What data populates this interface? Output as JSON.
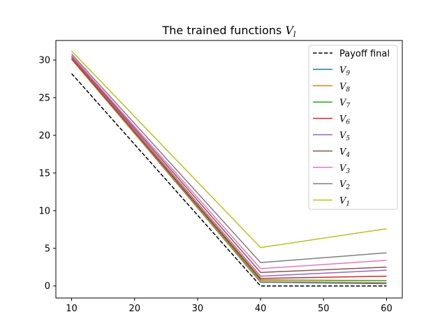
{
  "chart_data": {
    "type": "line",
    "title_prefix": "The trained functions",
    "title_symbol": "V",
    "title_subscript": "l",
    "x": [
      10,
      40,
      60
    ],
    "xlim": [
      7.5,
      62.5
    ],
    "ylim": [
      -1.6,
      32.6
    ],
    "xticks": [
      10,
      20,
      30,
      40,
      50,
      60
    ],
    "yticks": [
      0,
      5,
      10,
      15,
      20,
      25,
      30
    ],
    "legend_position": "upper-right",
    "series": [
      {
        "name": "Payoff final",
        "sym": "",
        "sub": "",
        "color": "#000000",
        "dash": true,
        "values": [
          28.2,
          0.0,
          0.0
        ]
      },
      {
        "name": "V_9",
        "sym": "V",
        "sub": "9",
        "color": "#1f77b4",
        "dash": false,
        "values": [
          30.1,
          0.5,
          0.3
        ]
      },
      {
        "name": "V_8",
        "sym": "V",
        "sub": "8",
        "color": "#ff7f0e",
        "dash": false,
        "values": [
          30.1,
          0.6,
          0.45
        ]
      },
      {
        "name": "V_7",
        "sym": "V",
        "sub": "7",
        "color": "#2ca02c",
        "dash": false,
        "values": [
          30.2,
          0.8,
          0.7
        ]
      },
      {
        "name": "V_6",
        "sym": "V",
        "sub": "6",
        "color": "#d62728",
        "dash": false,
        "values": [
          30.2,
          1.0,
          1.3
        ]
      },
      {
        "name": "V_5",
        "sym": "V",
        "sub": "5",
        "color": "#9467bd",
        "dash": false,
        "values": [
          30.4,
          1.3,
          2.1
        ]
      },
      {
        "name": "V_4",
        "sym": "V",
        "sub": "4",
        "color": "#8c564b",
        "dash": false,
        "values": [
          30.5,
          1.8,
          2.5
        ]
      },
      {
        "name": "V_3",
        "sym": "V",
        "sub": "3",
        "color": "#e377c2",
        "dash": false,
        "values": [
          30.6,
          2.3,
          3.4
        ]
      },
      {
        "name": "V_2",
        "sym": "V",
        "sub": "2",
        "color": "#7f7f7f",
        "dash": false,
        "values": [
          30.8,
          3.1,
          4.4
        ]
      },
      {
        "name": "V_1",
        "sym": "V",
        "sub": "1",
        "color": "#bcbd22",
        "dash": false,
        "values": [
          31.2,
          5.1,
          7.6
        ]
      }
    ]
  }
}
